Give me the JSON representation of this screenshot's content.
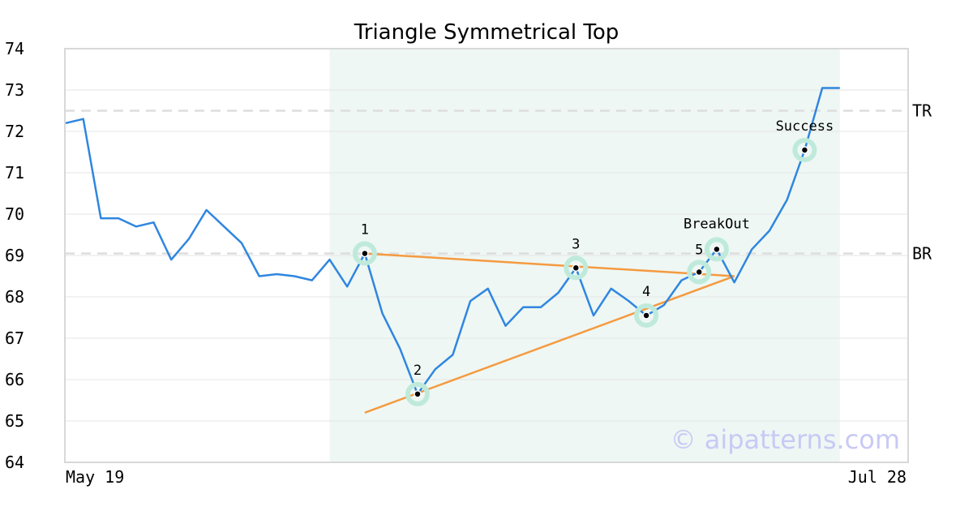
{
  "chart_data": {
    "type": "line",
    "title": "Triangle Symmetrical Top",
    "x_start_label": "May 19",
    "x_end_label": "Jul 28",
    "ylim": [
      64,
      74
    ],
    "yticks": [
      "64",
      "65",
      "66",
      "67",
      "68",
      "69",
      "70",
      "71",
      "72",
      "73",
      "74"
    ],
    "grid": true,
    "series": [
      {
        "values": [
          72.2,
          72.3,
          69.9,
          69.9,
          69.7,
          69.8,
          68.9,
          69.4,
          70.1,
          69.7,
          69.3,
          68.5,
          68.55,
          68.5,
          68.4,
          68.9,
          68.25,
          69.05,
          67.6,
          66.75,
          65.65,
          66.25,
          66.6,
          67.9,
          68.2,
          67.3,
          67.75,
          67.75,
          68.1,
          68.7,
          67.55,
          68.2,
          67.9,
          67.55,
          67.8,
          68.4,
          68.6,
          69.15,
          68.35,
          69.15,
          69.6,
          70.35,
          71.55,
          73.05,
          73.05
        ]
      }
    ],
    "pattern_region": {
      "start_index": 15,
      "end_index": 44
    },
    "levels": [
      {
        "label": "TR",
        "value": 72.5
      },
      {
        "label": "BR",
        "value": 69.05
      }
    ],
    "trendlines": [
      {
        "from": [
          17,
          69.05
        ],
        "to": [
          38,
          68.5
        ]
      },
      {
        "from": [
          17,
          65.2
        ],
        "to": [
          38,
          68.5
        ]
      }
    ],
    "markers": [
      {
        "label": "1",
        "index": 17,
        "value": 69.05
      },
      {
        "label": "2",
        "index": 20,
        "value": 65.65
      },
      {
        "label": "3",
        "index": 29,
        "value": 68.7
      },
      {
        "label": "4",
        "index": 33,
        "value": 67.55
      },
      {
        "label": "5",
        "index": 36,
        "value": 68.6
      },
      {
        "label": "BreakOut",
        "index": 37,
        "value": 69.15
      },
      {
        "label": "Success",
        "index": 42,
        "value": 71.55
      }
    ],
    "watermark": "© aipatterns.com",
    "colors": {
      "line": "#2f86e0",
      "trendline": "#f59a40",
      "region": "#eef7f3",
      "marker_halo": "#bfeadb",
      "level": "#dddddd"
    }
  }
}
